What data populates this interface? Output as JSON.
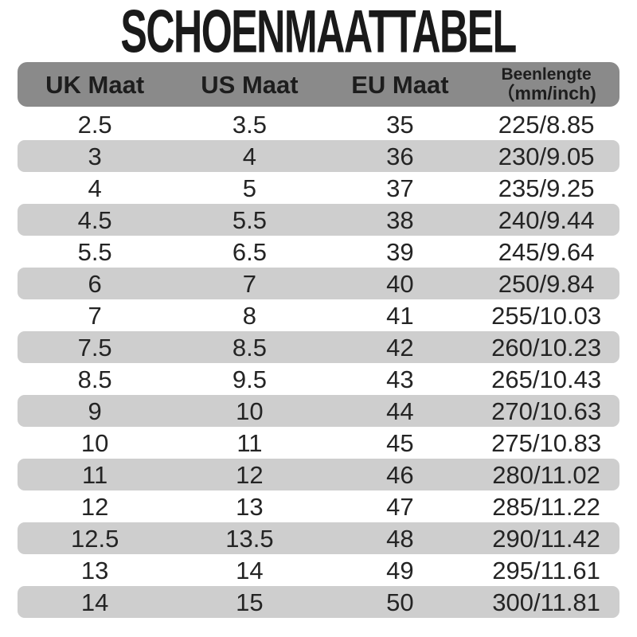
{
  "title": "SCHOENMAATTABEL",
  "colors": {
    "background": "#ffffff",
    "header_bg": "#8a8a8a",
    "stripe_bg": "#cecece",
    "text": "#242424",
    "title_text": "#1a1a1a"
  },
  "header": {
    "uk": "UK Maat",
    "us": "US Maat",
    "eu": "EU Maat",
    "been_line1": "Beenlengte",
    "been_line2": "（mm/inch)"
  },
  "chart_data": {
    "type": "table",
    "title": "SCHOENMAATTABEL",
    "columns": [
      "UK Maat",
      "US Maat",
      "EU Maat",
      "Beenlengte （mm/inch)"
    ],
    "rows": [
      [
        "2.5",
        "3.5",
        "35",
        "225/8.85"
      ],
      [
        "3",
        "4",
        "36",
        "230/9.05"
      ],
      [
        "4",
        "5",
        "37",
        "235/9.25"
      ],
      [
        "4.5",
        "5.5",
        "38",
        "240/9.44"
      ],
      [
        "5.5",
        "6.5",
        "39",
        "245/9.64"
      ],
      [
        "6",
        "7",
        "40",
        "250/9.84"
      ],
      [
        "7",
        "8",
        "41",
        "255/10.03"
      ],
      [
        "7.5",
        "8.5",
        "42",
        "260/10.23"
      ],
      [
        "8.5",
        "9.5",
        "43",
        "265/10.43"
      ],
      [
        "9",
        "10",
        "44",
        "270/10.63"
      ],
      [
        "10",
        "11",
        "45",
        "275/10.83"
      ],
      [
        "11",
        "12",
        "46",
        "280/11.02"
      ],
      [
        "12",
        "13",
        "47",
        "285/11.22"
      ],
      [
        "12.5",
        "13.5",
        "48",
        "290/11.42"
      ],
      [
        "13",
        "14",
        "49",
        "295/11.61"
      ],
      [
        "14",
        "15",
        "50",
        "300/11.81"
      ]
    ]
  }
}
